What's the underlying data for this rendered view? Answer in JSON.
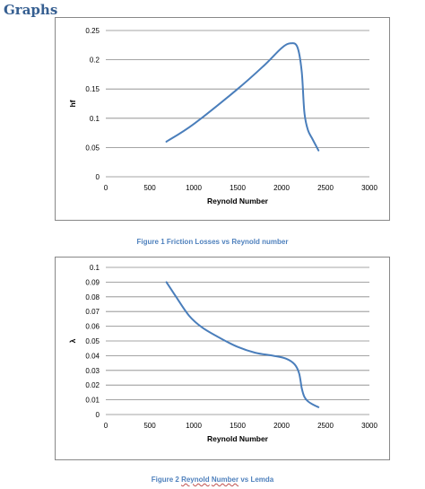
{
  "heading": "Graphs",
  "chart_data": [
    {
      "type": "line",
      "xlabel": "Reynold Number",
      "ylabel": "hf",
      "xlim": [
        0,
        3000
      ],
      "ylim": [
        0,
        0.25
      ],
      "xticks": [
        0,
        500,
        1000,
        1500,
        2000,
        2500,
        3000
      ],
      "yticks": [
        0,
        0.05,
        0.1,
        0.15,
        0.2,
        0.25
      ],
      "ytick_labels": [
        "0",
        "0.05",
        "0.1",
        "0.15",
        "0.2",
        "0.25"
      ],
      "grid": "horizontal",
      "series": [
        {
          "color": "#4a7ebb",
          "x": [
            690,
            1000,
            1500,
            1800,
            2000,
            2100,
            2180,
            2230,
            2260,
            2300,
            2350,
            2420
          ],
          "y": [
            0.06,
            0.09,
            0.15,
            0.19,
            0.22,
            0.228,
            0.222,
            0.18,
            0.11,
            0.08,
            0.065,
            0.045
          ]
        }
      ],
      "caption": "Figure 1  Friction Losses vs Reynold number"
    },
    {
      "type": "line",
      "xlabel": "Reynold Number",
      "ylabel": "λ",
      "xlim": [
        0,
        3000
      ],
      "ylim": [
        0,
        0.1
      ],
      "xticks": [
        0,
        500,
        1000,
        1500,
        2000,
        2500,
        3000
      ],
      "yticks": [
        0,
        0.01,
        0.02,
        0.03,
        0.04,
        0.05,
        0.06,
        0.07,
        0.08,
        0.09,
        0.1
      ],
      "ytick_labels": [
        "0",
        "0.01",
        "0.02",
        "0.03",
        "0.04",
        "0.05",
        "0.06",
        "0.07",
        "0.08",
        "0.09",
        "0.1"
      ],
      "grid": "horizontal",
      "series": [
        {
          "color": "#4a7ebb",
          "x": [
            690,
            800,
            950,
            1100,
            1300,
            1500,
            1700,
            1900,
            2050,
            2150,
            2200,
            2230,
            2260,
            2300,
            2350,
            2420
          ],
          "y": [
            0.09,
            0.08,
            0.067,
            0.059,
            0.052,
            0.046,
            0.042,
            0.04,
            0.038,
            0.034,
            0.028,
            0.018,
            0.012,
            0.009,
            0.007,
            0.005
          ]
        }
      ],
      "caption_parts": [
        "Figure 2 ",
        "Reynold",
        "  ",
        "Number",
        " vs Lemda"
      ]
    }
  ]
}
